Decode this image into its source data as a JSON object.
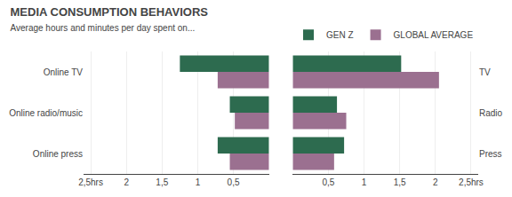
{
  "chart_data": [
    {
      "type": "bar",
      "orientation": "horizontal",
      "title": "MEDIA CONSUMPTION BEHAVIORS",
      "subtitle": "Average hours and minutes per day spent on...",
      "categories": [
        "Online TV",
        "Online radio/music",
        "Online press"
      ],
      "series": [
        {
          "name": "GEN Z",
          "color": "#2d6b4f",
          "values": [
            1.25,
            0.55,
            0.72
          ]
        },
        {
          "name": "GLOBAL AVERAGE",
          "color": "#9b7090",
          "values": [
            0.72,
            0.48,
            0.55
          ]
        }
      ],
      "xlim": [
        2.6,
        0
      ],
      "xticks": [
        {
          "value": 2.5,
          "label": "2,5hrs"
        },
        2,
        {
          "value": 1.5,
          "label": "1,5"
        },
        1,
        {
          "value": 0.5,
          "label": "0,5"
        }
      ],
      "grid": true
    },
    {
      "type": "bar",
      "orientation": "horizontal",
      "categories": [
        "TV",
        "Radio",
        "Press"
      ],
      "series": [
        {
          "name": "GEN Z",
          "color": "#2d6b4f",
          "values": [
            1.52,
            0.62,
            0.72
          ]
        },
        {
          "name": "GLOBAL AVERAGE",
          "color": "#9b7090",
          "values": [
            2.05,
            0.75,
            0.58
          ]
        }
      ],
      "xlim": [
        0,
        2.6
      ],
      "xticks": [
        {
          "value": 0.5,
          "label": "0,5"
        },
        1,
        {
          "value": 1.5,
          "label": "1,5"
        },
        2,
        {
          "value": 2.5,
          "label": "2,5hrs"
        }
      ],
      "grid": true
    }
  ]
}
